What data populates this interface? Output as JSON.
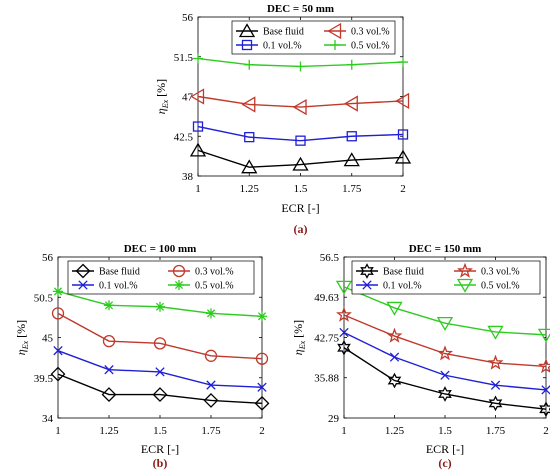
{
  "chart_data": [
    {
      "type": "line",
      "title": "DEC = 50 mm",
      "panel_label": "(a)",
      "xlabel": "ECR [-]",
      "ylabel_main": "η",
      "ylabel_sub": "Ex",
      "ylabel_unit": "[%]",
      "x": [
        1,
        1.25,
        1.5,
        1.75,
        2
      ],
      "x_tick_labels": [
        "1",
        "1.25",
        "1.5",
        "1.75",
        "2"
      ],
      "xlim": [
        1,
        2
      ],
      "ylim": [
        38,
        56
      ],
      "y_ticks": [
        38,
        42.5,
        47,
        51.5,
        56
      ],
      "y_tick_labels": [
        "38",
        "42.5",
        "47",
        "51.5",
        "56"
      ],
      "legend_position": "top",
      "grid": false,
      "series": [
        {
          "name": "Base fluid",
          "values": [
            40.9,
            39.0,
            39.3,
            39.8,
            40.1
          ],
          "color": "#000000",
          "marker": "triangle-up"
        },
        {
          "name": "0.3 vol.%",
          "values": [
            47.0,
            46.1,
            45.8,
            46.2,
            46.5
          ],
          "color": "#c0392b",
          "marker": "triangle-left"
        },
        {
          "name": "0.1 vol.%",
          "values": [
            43.6,
            42.4,
            42.0,
            42.5,
            42.7
          ],
          "color": "#1f1fd6",
          "marker": "square"
        },
        {
          "name": "0.5 vol.%",
          "values": [
            51.3,
            50.6,
            50.4,
            50.6,
            50.9
          ],
          "color": "#2ecc1f",
          "marker": "plus"
        }
      ]
    },
    {
      "type": "line",
      "title": "DEC = 100 mm",
      "panel_label": "(b)",
      "xlabel": "ECR [-]",
      "ylabel_main": "η",
      "ylabel_sub": "Ex",
      "ylabel_unit": "[%]",
      "x": [
        1,
        1.25,
        1.5,
        1.75,
        2
      ],
      "x_tick_labels": [
        "1",
        "1.25",
        "1.5",
        "1.75",
        "2"
      ],
      "xlim": [
        1,
        2
      ],
      "ylim": [
        34,
        56
      ],
      "y_ticks": [
        34,
        39.5,
        45,
        50.5,
        56
      ],
      "y_tick_labels": [
        "34",
        "39.5",
        "45",
        "50.5",
        "56"
      ],
      "legend_position": "top",
      "grid": false,
      "series": [
        {
          "name": "Base fluid",
          "values": [
            40.0,
            37.2,
            37.2,
            36.4,
            36.0
          ],
          "color": "#000000",
          "marker": "diamond"
        },
        {
          "name": "0.3 vol.%",
          "values": [
            48.3,
            44.5,
            44.2,
            42.5,
            42.1
          ],
          "color": "#c0392b",
          "marker": "circle"
        },
        {
          "name": "0.1 vol.%",
          "values": [
            43.2,
            40.6,
            40.3,
            38.5,
            38.2
          ],
          "color": "#1f1fd6",
          "marker": "x"
        },
        {
          "name": "0.5 vol.%",
          "values": [
            51.3,
            49.4,
            49.2,
            48.3,
            47.9
          ],
          "color": "#2ecc1f",
          "marker": "asterisk"
        }
      ]
    },
    {
      "type": "line",
      "title": "DEC = 150 mm",
      "panel_label": "(c)",
      "xlabel": "ECR [-]",
      "ylabel_main": "η",
      "ylabel_sub": "Ex",
      "ylabel_unit": "[%]",
      "x": [
        1,
        1.25,
        1.5,
        1.75,
        2
      ],
      "x_tick_labels": [
        "1",
        "1.25",
        "1.5",
        "1.75",
        "2"
      ],
      "xlim": [
        1,
        2
      ],
      "ylim": [
        29,
        56.5
      ],
      "y_ticks": [
        29,
        35.88,
        42.75,
        49.63,
        56.5
      ],
      "y_tick_labels": [
        "29",
        "35.88",
        "42.75",
        "49.63",
        "56.5"
      ],
      "legend_position": "top",
      "grid": false,
      "series": [
        {
          "name": "Base fluid",
          "values": [
            41.0,
            35.4,
            33.1,
            31.5,
            30.5
          ],
          "color": "#000000",
          "marker": "hexagram"
        },
        {
          "name": "0.3 vol.%",
          "values": [
            46.6,
            43.0,
            40.0,
            38.4,
            37.8
          ],
          "color": "#c0392b",
          "marker": "pentagram"
        },
        {
          "name": "0.1 vol.%",
          "values": [
            43.6,
            39.4,
            36.3,
            34.6,
            33.8
          ],
          "color": "#1f1fd6",
          "marker": "x"
        },
        {
          "name": "0.5 vol.%",
          "values": [
            51.4,
            47.8,
            45.2,
            43.7,
            43.2
          ],
          "color": "#2ecc1f",
          "marker": "triangle-down"
        }
      ]
    }
  ]
}
